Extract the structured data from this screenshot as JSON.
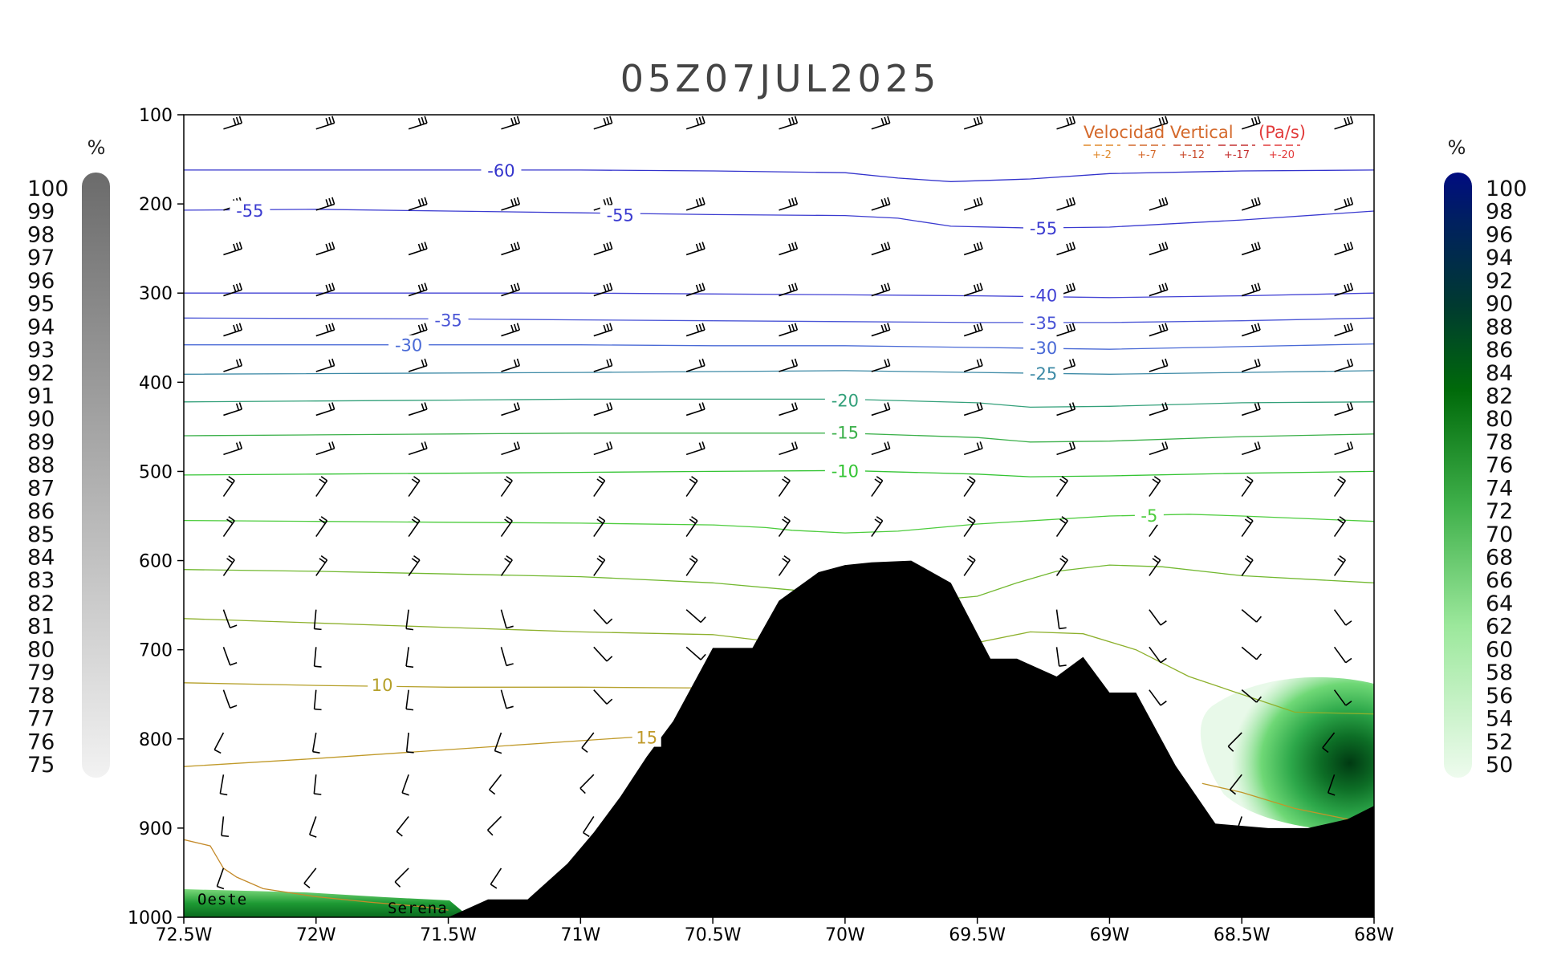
{
  "chart_data": {
    "type": "cross-section",
    "title": "05Z07JUL2025",
    "x_ticks": [
      "72.5W",
      "72W",
      "71.5W",
      "71W",
      "70.5W",
      "70W",
      "69.5W",
      "69W",
      "68.5W",
      "68W"
    ],
    "x_range": [
      72.5,
      68
    ],
    "y_ticks": [
      "100",
      "200",
      "300",
      "400",
      "500",
      "600",
      "700",
      "800",
      "900",
      "1000"
    ],
    "y_range": [
      100,
      1000
    ],
    "legend": {
      "title": "Velocidad Vertical",
      "unit": "(Pa/s)",
      "entries": [
        "+-2",
        "+-7",
        "+-12",
        "+-17",
        "+-20"
      ],
      "colors": [
        "#e08a2c",
        "#d4692b",
        "#c94a2a",
        "#c43030",
        "#e23b3b"
      ]
    },
    "left_colorbar": {
      "unit": "%",
      "labels": [
        "100",
        "99",
        "98",
        "97",
        "96",
        "95",
        "94",
        "93",
        "92",
        "91",
        "90",
        "89",
        "88",
        "87",
        "86",
        "85",
        "84",
        "83",
        "82",
        "81",
        "80",
        "79",
        "78",
        "77",
        "76",
        "75"
      ]
    },
    "right_colorbar": {
      "unit": "%",
      "labels": [
        "100",
        "98",
        "96",
        "94",
        "92",
        "90",
        "88",
        "86",
        "84",
        "82",
        "80",
        "78",
        "76",
        "74",
        "72",
        "70",
        "68",
        "66",
        "64",
        "62",
        "60",
        "58",
        "56",
        "54",
        "52",
        "50"
      ]
    },
    "isotherms": [
      {
        "label": "-60",
        "color": "#3333cc",
        "x": [
          72.5,
          71,
          70.5,
          70,
          69.8,
          69.6,
          69.3,
          69,
          68.5,
          68
        ],
        "p": [
          162,
          162,
          163,
          165,
          171,
          175,
          172,
          166,
          163,
          162
        ],
        "labels_at": [
          [
            71.3,
            162
          ]
        ]
      },
      {
        "label": "-55",
        "color": "#3b3bd0",
        "x": [
          72.5,
          72,
          71.5,
          71,
          70.5,
          70,
          69.8,
          69.6,
          69.3,
          69,
          68.5,
          68
        ],
        "p": [
          207,
          206,
          208,
          210,
          212,
          213,
          216,
          225,
          227,
          226,
          218,
          208
        ],
        "labels_at": [
          [
            72.25,
            207
          ],
          [
            70.85,
            212
          ],
          [
            69.25,
            227
          ]
        ]
      },
      {
        "label": "-40",
        "color": "#4242d4",
        "x": [
          72.5,
          71,
          70.5,
          70,
          69.5,
          69,
          68.5,
          68
        ],
        "p": [
          300,
          300,
          301,
          302,
          303,
          305,
          303,
          300
        ],
        "labels_at": [
          [
            69.25,
            302
          ]
        ]
      },
      {
        "label": "-35",
        "color": "#4a55d6",
        "x": [
          72.5,
          71.5,
          71,
          70.5,
          70,
          69.5,
          69,
          68.5,
          68
        ],
        "p": [
          328,
          329,
          330,
          331,
          332,
          333,
          333,
          331,
          328
        ],
        "labels_at": [
          [
            71.5,
            330
          ],
          [
            69.25,
            333
          ]
        ]
      },
      {
        "label": "-30",
        "color": "#4a6ad6",
        "x": [
          72.5,
          72,
          71.5,
          71,
          70.5,
          70,
          69.5,
          69,
          68.5,
          68
        ],
        "p": [
          358,
          358,
          358,
          358,
          359,
          359,
          361,
          363,
          360,
          357
        ],
        "labels_at": [
          [
            71.65,
            358
          ],
          [
            69.25,
            361
          ]
        ]
      },
      {
        "label": "-25",
        "color": "#3d8aa6",
        "x": [
          72.5,
          71,
          70.5,
          70,
          69.5,
          69,
          68.5,
          68
        ],
        "p": [
          391,
          389,
          388,
          387,
          389,
          391,
          389,
          387
        ],
        "labels_at": [
          [
            69.25,
            390
          ]
        ]
      },
      {
        "label": "-20",
        "color": "#33a07a",
        "x": [
          72.5,
          72,
          71.5,
          71,
          70.5,
          70,
          69.5,
          69.3,
          69,
          68.5,
          68
        ],
        "p": [
          422,
          421,
          420,
          419,
          419,
          419,
          423,
          428,
          427,
          423,
          422
        ],
        "labels_at": [
          [
            70.0,
            420
          ]
        ]
      },
      {
        "label": "-15",
        "color": "#3bb04a",
        "x": [
          72.5,
          72,
          71.5,
          71,
          70.5,
          70,
          69.5,
          69.3,
          69,
          68.5,
          68
        ],
        "p": [
          460,
          459,
          458,
          457,
          457,
          457,
          462,
          467,
          466,
          461,
          458
        ],
        "labels_at": [
          [
            70.0,
            456
          ]
        ]
      },
      {
        "label": "-10",
        "color": "#33c433",
        "x": [
          72.5,
          72,
          71.5,
          71,
          70.5,
          70,
          69.5,
          69.3,
          69,
          68.5,
          68
        ],
        "p": [
          504,
          503,
          502,
          501,
          500,
          499,
          503,
          506,
          505,
          502,
          500
        ],
        "labels_at": [
          [
            70.0,
            499
          ]
        ]
      },
      {
        "label": "-5",
        "color": "#4ccc3c",
        "x": [
          72.5,
          72,
          71.5,
          71,
          70.5,
          70.3,
          70.2,
          70,
          69.8,
          69.5,
          69,
          68.7,
          68.5,
          68
        ],
        "p": [
          555,
          556,
          557,
          558,
          560,
          563,
          566,
          569,
          567,
          559,
          550,
          548,
          550,
          556
        ],
        "labels_at": [
          [
            68.85,
            549
          ]
        ]
      },
      {
        "label": "",
        "color": "#72b830",
        "x": [
          72.5,
          72,
          71.5,
          71,
          70.5,
          70.2,
          70,
          69.8,
          69.5,
          69.35,
          69.2,
          69,
          68.8,
          68.5,
          68
        ],
        "p": [
          610,
          612,
          615,
          618,
          625,
          633,
          640,
          648,
          640,
          625,
          612,
          605,
          607,
          617,
          625
        ]
      },
      {
        "label": "",
        "color": "#8db02c",
        "x": [
          72.5,
          72,
          71.5,
          71,
          70.5,
          70.3,
          70.2,
          69.6,
          69.3,
          69.1,
          68.9,
          68.7,
          68.5,
          68.3,
          68
        ],
        "p": [
          665,
          670,
          675,
          680,
          683,
          690,
          700,
          698,
          680,
          682,
          700,
          730,
          750,
          770,
          772
        ]
      },
      {
        "label": "10",
        "color": "#b5a02a",
        "x": [
          72.5,
          72,
          71.5,
          71,
          70.5,
          70.3
        ],
        "p": [
          737,
          740,
          742,
          742,
          743,
          745
        ],
        "labels_at": [
          [
            71.75,
            739
          ]
        ]
      },
      {
        "label": "15",
        "color": "#c09a2a",
        "x": [
          72.5,
          72,
          71.5,
          71,
          70.8,
          70.7
        ],
        "p": [
          831,
          822,
          812,
          802,
          798,
          798
        ],
        "labels_at": [
          [
            70.75,
            798
          ]
        ]
      },
      {
        "label": "",
        "color": "#c0962a",
        "x": [
          68.65,
          68.5,
          68.3,
          68.1,
          68
        ],
        "p": [
          850,
          860,
          878,
          890,
          890
        ]
      },
      {
        "label": "",
        "color": "#c48a2a",
        "x": [
          72.5,
          72.4,
          72.35,
          72.3,
          72.2,
          72,
          71.8,
          71.6,
          71.5
        ],
        "p": [
          913,
          920,
          945,
          955,
          968,
          977,
          983,
          988,
          992
        ]
      }
    ],
    "terrain": {
      "x": [
        71.5,
        71.35,
        71.2,
        71.05,
        70.95,
        70.85,
        70.75,
        70.65,
        70.5,
        70.35,
        70.25,
        70.1,
        70.0,
        69.9,
        69.75,
        69.6,
        69.45,
        69.35,
        69.2,
        69.1,
        69.0,
        68.9,
        68.75,
        68.6,
        68.4,
        68.25,
        68.1,
        68.0
      ],
      "p": [
        1000,
        980,
        980,
        940,
        905,
        865,
        820,
        780,
        698,
        698,
        645,
        613,
        605,
        602,
        600,
        625,
        710,
        710,
        730,
        708,
        748,
        748,
        830,
        895,
        900,
        900,
        890,
        875
      ]
    },
    "wind_barbs": {
      "x": [
        72.35,
        72.0,
        71.65,
        71.3,
        70.95,
        70.6,
        70.25,
        69.9,
        69.55,
        69.2,
        68.85,
        68.5,
        68.15
      ],
      "p": [
        116,
        207,
        257,
        303,
        348,
        388,
        437,
        481,
        528,
        573,
        617,
        655,
        697,
        745,
        793,
        840,
        887,
        945
      ]
    },
    "shading_features": {
      "rh_green_peak_percent": 86,
      "rh_green_center": [
        68.0,
        825
      ],
      "rh_gray_peak_percent": 75,
      "rh_green_surface": {
        "x": [
          72.5,
          71.6
        ],
        "p": [
          985,
          995
        ]
      }
    },
    "place_labels": [
      "Oeste",
      "Serena"
    ]
  }
}
